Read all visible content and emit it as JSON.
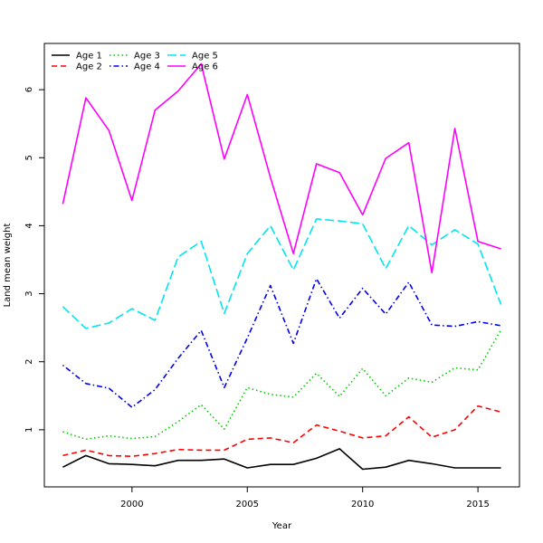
{
  "chart_data": {
    "type": "line",
    "xlabel": "Year",
    "ylabel": "Land mean weight",
    "xlim": [
      1996.2,
      2016.8
    ],
    "ylim": [
      0.16,
      6.68
    ],
    "xticks": [
      2000,
      2005,
      2010,
      2015
    ],
    "yticks": [
      1,
      2,
      3,
      4,
      5,
      6
    ],
    "grid": false,
    "legend_position": "top-left",
    "x": [
      1997,
      1998,
      1999,
      2000,
      2001,
      2002,
      2003,
      2004,
      2005,
      2006,
      2007,
      2008,
      2009,
      2010,
      2011,
      2012,
      2013,
      2014,
      2015,
      2016
    ],
    "series": [
      {
        "name": "Age 1",
        "color": "#000000",
        "dash": "solid",
        "values": [
          0.45,
          0.62,
          0.5,
          0.49,
          0.47,
          0.55,
          0.55,
          0.57,
          0.44,
          0.49,
          0.49,
          0.58,
          0.72,
          0.42,
          0.45,
          0.55,
          0.5,
          0.44,
          0.44,
          0.44
        ]
      },
      {
        "name": "Age 2",
        "color": "#ff0000",
        "dash": "dashed",
        "values": [
          0.62,
          0.7,
          0.62,
          0.61,
          0.65,
          0.71,
          0.7,
          0.7,
          0.86,
          0.88,
          0.81,
          1.07,
          0.98,
          0.88,
          0.91,
          1.19,
          0.89,
          1.0,
          1.35,
          1.26
        ]
      },
      {
        "name": "Age 3",
        "color": "#00cc00",
        "dash": "dotted",
        "values": [
          0.97,
          0.86,
          0.91,
          0.87,
          0.9,
          1.12,
          1.37,
          1.01,
          1.62,
          1.52,
          1.48,
          1.83,
          1.49,
          1.9,
          1.5,
          1.76,
          1.7,
          1.91,
          1.88,
          2.47
        ]
      },
      {
        "name": "Age 4",
        "color": "#0000ee",
        "dash": "dotdash",
        "values": [
          1.95,
          1.68,
          1.61,
          1.33,
          1.59,
          2.05,
          2.46,
          1.62,
          2.35,
          3.12,
          2.27,
          3.22,
          2.64,
          3.08,
          2.7,
          3.17,
          2.54,
          2.52,
          2.59,
          2.53
        ]
      },
      {
        "name": "Age 5",
        "color": "#00e5ee",
        "dash": "longdash",
        "values": [
          2.81,
          2.49,
          2.57,
          2.78,
          2.61,
          3.54,
          3.77,
          2.71,
          3.59,
          4.0,
          3.35,
          4.1,
          4.07,
          4.03,
          3.37,
          4.0,
          3.72,
          3.94,
          3.73,
          2.84
        ]
      },
      {
        "name": "Age 6",
        "color": "#ff00ff",
        "dash": "solid",
        "values": [
          4.32,
          5.88,
          5.4,
          4.37,
          5.7,
          5.98,
          6.38,
          4.98,
          5.93,
          4.71,
          3.59,
          4.91,
          4.78,
          4.16,
          4.99,
          5.22,
          3.31,
          5.43,
          3.77,
          3.66
        ]
      }
    ]
  },
  "colors": {
    "axis": "#000000",
    "background": "#ffffff"
  }
}
